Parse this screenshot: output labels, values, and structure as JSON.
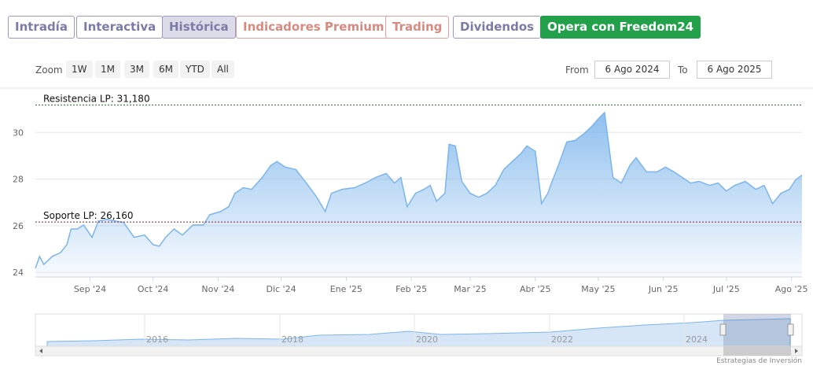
{
  "tabs": [
    "Intradía",
    "Interactiva",
    "Histórica",
    "Indicadores Premium",
    "Trading",
    "Dividendos",
    "Opera con Freedom24"
  ],
  "zoom": {
    "label": "Zoom",
    "buttons": [
      "1W",
      "1M",
      "3M",
      "6M",
      "YTD",
      "All"
    ]
  },
  "date_range": {
    "from_label": "From",
    "from": "6 Ago 2024",
    "to_label": "To",
    "to": "6 Ago 2025"
  },
  "chart_data": {
    "type": "area",
    "x": [
      "2024-08-06",
      "2024-08-08",
      "2024-08-10",
      "2024-08-14",
      "2024-08-18",
      "2024-08-21",
      "2024-08-23",
      "2024-08-26",
      "2024-08-29",
      "2024-09-02",
      "2024-09-05",
      "2024-09-09",
      "2024-09-13",
      "2024-09-17",
      "2024-09-22",
      "2024-09-27",
      "2024-10-01",
      "2024-10-04",
      "2024-10-07",
      "2024-10-11",
      "2024-10-15",
      "2024-10-20",
      "2024-10-25",
      "2024-10-28",
      "2024-11-02",
      "2024-11-06",
      "2024-11-09",
      "2024-11-13",
      "2024-11-17",
      "2024-11-22",
      "2024-11-26",
      "2024-11-29",
      "2024-12-03",
      "2024-12-08",
      "2024-12-13",
      "2024-12-18",
      "2024-12-22",
      "2024-12-25",
      "2024-12-30",
      "2025-01-05",
      "2025-01-10",
      "2025-01-15",
      "2025-01-20",
      "2025-01-24",
      "2025-01-27",
      "2025-01-30",
      "2025-02-03",
      "2025-02-07",
      "2025-02-10",
      "2025-02-13",
      "2025-02-17",
      "2025-02-19",
      "2025-02-22",
      "2025-02-25",
      "2025-03-01",
      "2025-03-05",
      "2025-03-09",
      "2025-03-13",
      "2025-03-17",
      "2025-03-21",
      "2025-03-25",
      "2025-03-28",
      "2025-04-01",
      "2025-04-04",
      "2025-04-07",
      "2025-04-09",
      "2025-04-12",
      "2025-04-16",
      "2025-04-20",
      "2025-04-24",
      "2025-04-28",
      "2025-05-02",
      "2025-05-04",
      "2025-05-08",
      "2025-05-12",
      "2025-05-16",
      "2025-05-19",
      "2025-05-24",
      "2025-05-29",
      "2025-06-02",
      "2025-06-06",
      "2025-06-10",
      "2025-06-14",
      "2025-06-18",
      "2025-06-23",
      "2025-06-27",
      "2025-07-01",
      "2025-07-05",
      "2025-07-10",
      "2025-07-15",
      "2025-07-19",
      "2025-07-23",
      "2025-07-27",
      "2025-07-31",
      "2025-08-03",
      "2025-08-06"
    ],
    "series": [
      {
        "color": "#7cb5ec",
        "values": [
          24.17,
          24.68,
          24.34,
          24.68,
          24.85,
          25.19,
          25.86,
          25.86,
          26.03,
          25.5,
          26.2,
          26.27,
          26.2,
          26.14,
          25.5,
          25.6,
          25.19,
          25.12,
          25.5,
          25.86,
          25.6,
          26.03,
          26.03,
          26.47,
          26.6,
          26.81,
          27.39,
          27.63,
          27.56,
          28.07,
          28.58,
          28.75,
          28.51,
          28.41,
          27.83,
          27.22,
          26.61,
          27.39,
          27.56,
          27.63,
          27.83,
          28.07,
          28.24,
          27.83,
          28.07,
          26.81,
          27.39,
          27.56,
          27.73,
          27.05,
          27.39,
          29.49,
          29.42,
          27.9,
          27.39,
          27.22,
          27.39,
          27.73,
          28.41,
          28.75,
          29.08,
          29.42,
          29.19,
          26.95,
          27.39,
          27.9,
          28.58,
          29.59,
          29.66,
          29.93,
          30.27,
          30.68,
          30.85,
          28.07,
          27.83,
          28.58,
          28.92,
          28.31,
          28.31,
          28.51,
          28.31,
          28.07,
          27.83,
          27.9,
          27.73,
          27.83,
          27.49,
          27.73,
          27.9,
          27.56,
          27.73,
          26.95,
          27.39,
          27.56,
          27.97,
          28.17
        ]
      }
    ],
    "xlim": [
      "2024-08-06",
      "2025-08-06"
    ],
    "xticks": [
      {
        "value": "2024-09-01",
        "label": "Sep '24"
      },
      {
        "value": "2024-10-01",
        "label": "Oct '24"
      },
      {
        "value": "2024-11-01",
        "label": "Nov '24"
      },
      {
        "value": "2024-12-01",
        "label": "Dic '24"
      },
      {
        "value": "2025-01-01",
        "label": "Ene '25"
      },
      {
        "value": "2025-02-01",
        "label": "Feb '25"
      },
      {
        "value": "2025-03-01",
        "label": "Mar '25"
      },
      {
        "value": "2025-04-01",
        "label": "Abr '25"
      },
      {
        "value": "2025-05-01",
        "label": "May '25"
      },
      {
        "value": "2025-06-01",
        "label": "Jun '25"
      },
      {
        "value": "2025-07-01",
        "label": "Jul '25"
      },
      {
        "value": "2025-08-01",
        "label": "Ago '25"
      }
    ],
    "ylim": [
      23.8,
      31.9
    ],
    "yticks": [
      24,
      26,
      28,
      30
    ],
    "grid": true,
    "reference_lines": [
      {
        "label": "Resistencia LP: 31,180",
        "value": 31.18,
        "color": "#1f6f1f"
      },
      {
        "label": "Soporte LP: 26,160",
        "value": 26.16,
        "color": "#8b1a2a"
      }
    ]
  },
  "navigator": {
    "labels": [
      "2016",
      "2018",
      "2020",
      "2022",
      "2024"
    ]
  },
  "credit": "Estrategias de Inversión"
}
